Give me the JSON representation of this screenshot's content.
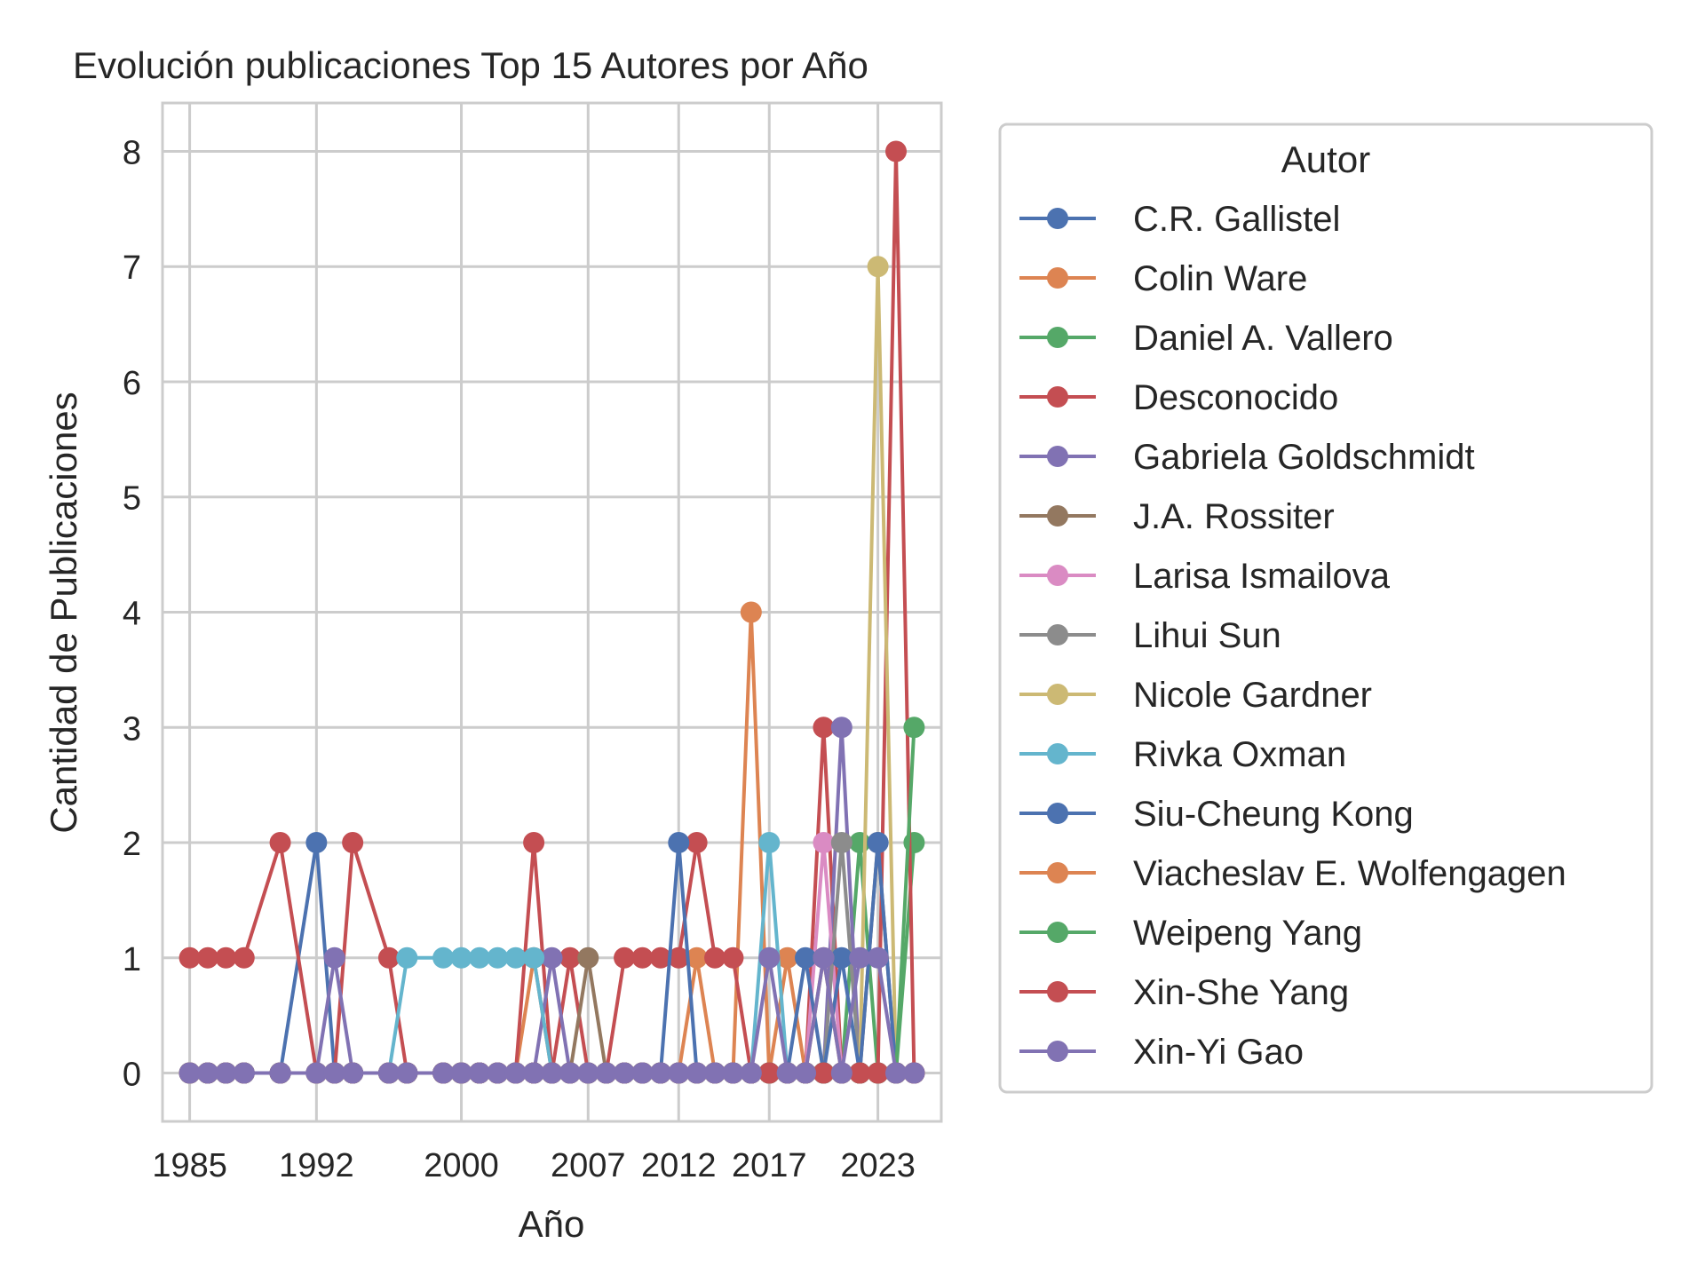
{
  "chart_data": {
    "type": "line",
    "title": "Evolución publicaciones Top 15 Autores por Año",
    "xlabel": "Año",
    "ylabel": "Cantidad de Publicaciones",
    "xlim": [
      1983.5,
      2026.5
    ],
    "ylim": [
      -0.42,
      8.42
    ],
    "xticks": [
      1985,
      1992,
      2000,
      2007,
      2012,
      2017,
      2023
    ],
    "yticks": [
      0,
      1,
      2,
      3,
      4,
      5,
      6,
      7,
      8
    ],
    "grid": true,
    "legend": {
      "title": "Autor",
      "placement": "outside right"
    },
    "x": [
      1985,
      1986,
      1987,
      1988,
      1990,
      1992,
      1993,
      1994,
      1996,
      1997,
      1999,
      2000,
      2001,
      2002,
      2003,
      2004,
      2005,
      2006,
      2007,
      2008,
      2009,
      2010,
      2011,
      2012,
      2013,
      2014,
      2015,
      2016,
      2017,
      2018,
      2019,
      2020,
      2021,
      2022,
      2023,
      2024,
      2025
    ],
    "series": [
      {
        "name": "C.R. Gallistel",
        "color": "#4c72b0",
        "values": [
          0,
          0,
          0,
          0,
          0,
          2,
          0,
          0,
          0,
          0,
          0,
          0,
          0,
          0,
          0,
          0,
          0,
          0,
          0,
          0,
          0,
          0,
          0,
          0,
          0,
          0,
          0,
          0,
          0,
          0,
          0,
          0,
          0,
          0,
          0,
          0,
          0
        ]
      },
      {
        "name": "Colin Ware",
        "color": "#dd8452",
        "values": [
          0,
          0,
          0,
          0,
          0,
          0,
          0,
          0,
          0,
          0,
          0,
          0,
          0,
          0,
          0,
          1,
          0,
          0,
          0,
          0,
          0,
          0,
          0,
          0,
          1,
          0,
          0,
          4,
          0,
          1,
          0,
          0,
          0,
          0,
          0,
          0,
          0
        ]
      },
      {
        "name": "Daniel A. Vallero",
        "color": "#55a868",
        "values": [
          0,
          0,
          0,
          0,
          0,
          0,
          0,
          0,
          0,
          0,
          0,
          0,
          0,
          0,
          0,
          0,
          0,
          0,
          0,
          0,
          0,
          0,
          0,
          0,
          0,
          0,
          0,
          0,
          0,
          0,
          0,
          0,
          0,
          2,
          0,
          0,
          2
        ]
      },
      {
        "name": "Desconocido",
        "color": "#c44e52",
        "values": [
          1,
          1,
          1,
          1,
          2,
          0,
          0,
          2,
          1,
          0,
          0,
          0,
          0,
          0,
          0,
          2,
          0,
          1,
          0,
          0,
          1,
          1,
          1,
          1,
          2,
          1,
          1,
          0,
          0,
          0,
          0,
          3,
          0,
          0,
          0,
          8,
          0
        ]
      },
      {
        "name": "Gabriela Goldschmidt",
        "color": "#8172b3",
        "values": [
          0,
          0,
          0,
          0,
          0,
          0,
          1,
          0,
          0,
          0,
          0,
          0,
          0,
          0,
          0,
          0,
          1,
          0,
          0,
          0,
          0,
          0,
          0,
          0,
          0,
          0,
          0,
          0,
          0,
          0,
          0,
          0,
          3,
          0,
          0,
          0,
          0
        ]
      },
      {
        "name": "J.A. Rossiter",
        "color": "#937860",
        "values": [
          0,
          0,
          0,
          0,
          0,
          0,
          0,
          0,
          0,
          0,
          0,
          0,
          0,
          0,
          0,
          0,
          0,
          0,
          1,
          0,
          0,
          0,
          0,
          0,
          0,
          0,
          0,
          0,
          0,
          0,
          0,
          0,
          0,
          0,
          2,
          0,
          0
        ]
      },
      {
        "name": "Larisa Ismailova",
        "color": "#da8bc3",
        "values": [
          0,
          0,
          0,
          0,
          0,
          0,
          0,
          0,
          0,
          0,
          0,
          0,
          0,
          0,
          0,
          0,
          0,
          0,
          0,
          0,
          0,
          0,
          0,
          0,
          0,
          0,
          0,
          0,
          0,
          0,
          0,
          2,
          0,
          0,
          0,
          0,
          0
        ]
      },
      {
        "name": "Lihui Sun",
        "color": "#8c8c8c",
        "values": [
          0,
          0,
          0,
          0,
          0,
          0,
          0,
          0,
          0,
          0,
          0,
          0,
          0,
          0,
          0,
          0,
          0,
          0,
          0,
          0,
          0,
          0,
          0,
          0,
          0,
          0,
          0,
          0,
          0,
          0,
          0,
          0,
          2,
          0,
          0,
          0,
          0
        ]
      },
      {
        "name": "Nicole Gardner",
        "color": "#ccb974",
        "values": [
          0,
          0,
          0,
          0,
          0,
          0,
          0,
          0,
          0,
          0,
          0,
          0,
          0,
          0,
          0,
          0,
          0,
          0,
          0,
          0,
          0,
          0,
          0,
          0,
          0,
          0,
          0,
          0,
          0,
          0,
          0,
          0,
          0,
          0,
          7,
          0,
          0
        ]
      },
      {
        "name": "Rivka Oxman",
        "color": "#64b5cd",
        "values": [
          0,
          0,
          0,
          0,
          0,
          0,
          0,
          0,
          0,
          1,
          1,
          1,
          1,
          1,
          1,
          1,
          0,
          0,
          0,
          0,
          0,
          0,
          0,
          0,
          0,
          0,
          0,
          0,
          2,
          0,
          0,
          0,
          0,
          0,
          0,
          0,
          0
        ]
      },
      {
        "name": "Siu-Cheung Kong",
        "color": "#4c72b0",
        "values": [
          0,
          0,
          0,
          0,
          0,
          0,
          0,
          0,
          0,
          0,
          0,
          0,
          0,
          0,
          0,
          0,
          0,
          0,
          0,
          0,
          0,
          0,
          0,
          2,
          0,
          0,
          0,
          0,
          0,
          0,
          1,
          0,
          1,
          0,
          2,
          0,
          0
        ]
      },
      {
        "name": "Viacheslav E. Wolfengagen",
        "color": "#dd8452",
        "values": [
          0,
          0,
          0,
          0,
          0,
          0,
          0,
          0,
          0,
          0,
          0,
          0,
          0,
          0,
          0,
          0,
          0,
          0,
          0,
          0,
          0,
          0,
          0,
          0,
          0,
          0,
          0,
          0,
          0,
          0,
          0,
          1,
          0,
          0,
          0,
          0,
          0
        ]
      },
      {
        "name": "Weipeng Yang",
        "color": "#55a868",
        "values": [
          0,
          0,
          0,
          0,
          0,
          0,
          0,
          0,
          0,
          0,
          0,
          0,
          0,
          0,
          0,
          0,
          0,
          0,
          0,
          0,
          0,
          0,
          0,
          0,
          0,
          0,
          0,
          0,
          0,
          0,
          0,
          0,
          0,
          0,
          0,
          0,
          3
        ]
      },
      {
        "name": "Xin-She Yang",
        "color": "#c44e52",
        "values": [
          0,
          0,
          0,
          0,
          0,
          0,
          0,
          0,
          0,
          0,
          0,
          0,
          0,
          0,
          0,
          0,
          0,
          0,
          0,
          0,
          0,
          0,
          0,
          0,
          0,
          0,
          0,
          0,
          0,
          0,
          0,
          0,
          0,
          0,
          0,
          0,
          0
        ]
      },
      {
        "name": "Xin-Yi Gao",
        "color": "#8172b3",
        "values": [
          0,
          0,
          0,
          0,
          0,
          0,
          0,
          0,
          0,
          0,
          0,
          0,
          0,
          0,
          0,
          0,
          0,
          0,
          0,
          0,
          0,
          0,
          0,
          0,
          0,
          0,
          0,
          0,
          1,
          0,
          0,
          1,
          0,
          1,
          1,
          0,
          0
        ]
      }
    ]
  }
}
